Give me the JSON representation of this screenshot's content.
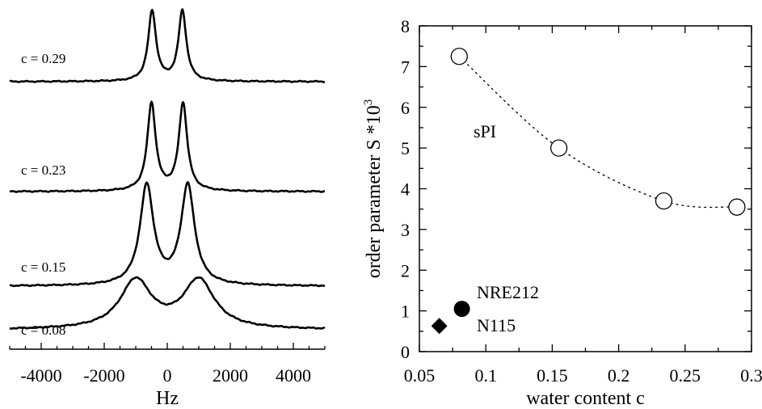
{
  "chart_data": [
    {
      "type": "line",
      "xlabel": "Hz",
      "xlim": [
        -5000,
        5000
      ],
      "x_ticks": [
        -4000,
        -2000,
        0,
        2000,
        4000
      ],
      "x_tick_labels": [
        "-4000",
        "-2000",
        "0",
        "2000",
        "4000"
      ],
      "spectra": [
        {
          "label": "c = 0.29",
          "c": 0.29,
          "peaks_hz": [
            -480,
            480
          ],
          "halfwidth_hz": 150,
          "amplitude": 1.0
        },
        {
          "label": "c = 0.23",
          "c": 0.23,
          "peaks_hz": [
            -500,
            500
          ],
          "halfwidth_hz": 160,
          "amplitude": 1.0
        },
        {
          "label": "c = 0.15",
          "c": 0.15,
          "peaks_hz": [
            -650,
            650
          ],
          "halfwidth_hz": 260,
          "amplitude": 1.0
        },
        {
          "label": "c = 0.08",
          "c": 0.08,
          "peaks_hz": [
            -1000,
            1000
          ],
          "halfwidth_hz": 600,
          "amplitude": 1.0
        }
      ]
    },
    {
      "type": "scatter",
      "xlabel": "water content c",
      "ylabel": "order parameter S *10",
      "ylabel_superscript": "3",
      "xlim": [
        0.05,
        0.3
      ],
      "ylim": [
        0,
        8
      ],
      "x_ticks": [
        0.05,
        0.1,
        0.15,
        0.2,
        0.25,
        0.3
      ],
      "x_tick_labels": [
        "0.05",
        "0.1",
        "0.15",
        "0.2",
        "0.25",
        "0.3"
      ],
      "y_ticks": [
        0,
        1,
        2,
        3,
        4,
        5,
        6,
        7,
        8
      ],
      "y_tick_labels": [
        "0",
        "1",
        "2",
        "3",
        "4",
        "5",
        "6",
        "7",
        "8"
      ],
      "series": [
        {
          "name": "sPI",
          "marker": "open-circle",
          "line": "dotted",
          "x": [
            0.08,
            0.155,
            0.234,
            0.289
          ],
          "y": [
            7.25,
            5.0,
            3.7,
            3.55
          ]
        },
        {
          "name": "NRE212",
          "marker": "filled-circle",
          "x": [
            0.082
          ],
          "y": [
            1.05
          ]
        },
        {
          "name": "N115",
          "marker": "filled-diamond",
          "x": [
            0.065
          ],
          "y": [
            0.63
          ]
        }
      ]
    }
  ]
}
